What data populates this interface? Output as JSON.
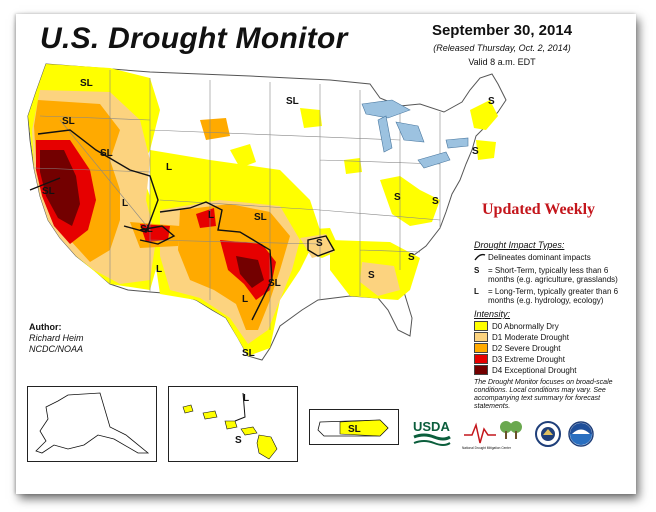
{
  "header": {
    "title": "U.S. Drought Monitor",
    "date": "September 30, 2014",
    "released": "(Released Thursday, Oct. 2, 2014)",
    "valid": "Valid 8 a.m. EDT"
  },
  "banner": {
    "updated": "Updated Weekly"
  },
  "author": {
    "heading": "Author:",
    "name": "Richard Heim",
    "org": "NCDC/NOAA"
  },
  "legend": {
    "impact_heading": "Drought Impact Types:",
    "impact_line": "Delineates dominant impacts",
    "short_key": "S",
    "short_text": "= Short-Term, typically less than 6 months (e.g. agriculture, grasslands)",
    "long_key": "L",
    "long_text": "= Long-Term, typically greater than 6 months (e.g. hydrology, ecology)",
    "intensity_heading": "Intensity:",
    "categories": [
      {
        "label": "D0 Abnormally Dry",
        "color": "#ffff00"
      },
      {
        "label": "D1 Moderate Drought",
        "color": "#fcd37f"
      },
      {
        "label": "D2 Severe Drought",
        "color": "#ffaa00"
      },
      {
        "label": "D3 Extreme Drought",
        "color": "#e60000"
      },
      {
        "label": "D4 Exceptional Drought",
        "color": "#730000"
      }
    ]
  },
  "note": "The Drought Monitor focuses on broad-scale conditions. Local conditions may vary. See accompanying text summary for forecast statements.",
  "map_labels": {
    "west_sl1": "SL",
    "west_sl2": "SL",
    "west_sl3": "SL",
    "west_sl4": "SL",
    "west_l1": "L",
    "west_l2": "L",
    "west_sl5": "SL",
    "west_l3": "L",
    "plains_sl1": "SL",
    "plains_l1": "L",
    "plains_sl2": "SL",
    "plains_l2": "L",
    "tx_sl": "SL",
    "mo_s": "S",
    "se_s1": "S",
    "se_s2": "S",
    "oh_s": "S",
    "va_s": "S",
    "ne_s": "S",
    "me_s": "S",
    "west_sl6": "SL"
  },
  "insets": {
    "hawaii_l": "L",
    "hawaii_s": "S",
    "pr_sl": "SL"
  },
  "logos": {
    "usda": "USDA",
    "ndmc": "National Drought Mitigation Center"
  }
}
